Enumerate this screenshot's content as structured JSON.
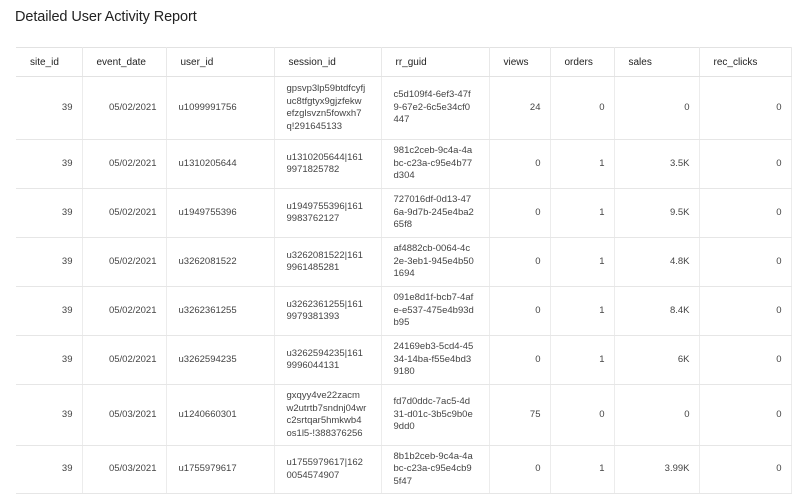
{
  "report": {
    "title": "Detailed User Activity Report"
  },
  "columns": [
    "site_id",
    "event_date",
    "user_id",
    "session_id",
    "rr_guid",
    "views",
    "orders",
    "sales",
    "rec_clicks"
  ],
  "rows": [
    {
      "site_id": "39",
      "event_date": "05/02/2021",
      "user_id": "u1099991756",
      "session_id": "gpsvp3lp59btdfcyfjuc8tfgtyx9gjzfekwefzglsvzn5fowxh7q!291645133",
      "rr_guid": "c5d109f4-6ef3-47f9-67e2-6c5e34cf0447",
      "views": "24",
      "orders": "0",
      "sales": "0",
      "rec_clicks": "0"
    },
    {
      "site_id": "39",
      "event_date": "05/02/2021",
      "user_id": "u1310205644",
      "session_id": "u1310205644|1619971825782",
      "rr_guid": "981c2ceb-9c4a-4abc-c23a-c95e4b77d304",
      "views": "0",
      "orders": "1",
      "sales": "3.5K",
      "rec_clicks": "0"
    },
    {
      "site_id": "39",
      "event_date": "05/02/2021",
      "user_id": "u1949755396",
      "session_id": "u1949755396|1619983762127",
      "rr_guid": "727016df-0d13-476a-9d7b-245e4ba265f8",
      "views": "0",
      "orders": "1",
      "sales": "9.5K",
      "rec_clicks": "0"
    },
    {
      "site_id": "39",
      "event_date": "05/02/2021",
      "user_id": "u3262081522",
      "session_id": "u3262081522|1619961485281",
      "rr_guid": "af4882cb-0064-4c2e-3eb1-945e4b501694",
      "views": "0",
      "orders": "1",
      "sales": "4.8K",
      "rec_clicks": "0"
    },
    {
      "site_id": "39",
      "event_date": "05/02/2021",
      "user_id": "u3262361255",
      "session_id": "u3262361255|1619979381393",
      "rr_guid": "091e8d1f-bcb7-4afe-e537-475e4b93db95",
      "views": "0",
      "orders": "1",
      "sales": "8.4K",
      "rec_clicks": "0"
    },
    {
      "site_id": "39",
      "event_date": "05/02/2021",
      "user_id": "u3262594235",
      "session_id": "u3262594235|1619996044131",
      "rr_guid": "24169eb3-5cd4-4534-14ba-f55e4bd39180",
      "views": "0",
      "orders": "1",
      "sales": "6K",
      "rec_clicks": "0"
    },
    {
      "site_id": "39",
      "event_date": "05/03/2021",
      "user_id": "u1240660301",
      "session_id": "gxqyy4ve22zacmw2utrtb7sndnj04wrc2srtqar5hmkwb4os1l5-!388376256",
      "rr_guid": "fd7d0ddc-7ac5-4d31-d01c-3b5c9b0e9dd0",
      "views": "75",
      "orders": "0",
      "sales": "0",
      "rec_clicks": "0"
    },
    {
      "site_id": "39",
      "event_date": "05/03/2021",
      "user_id": "u1755979617",
      "session_id": "u1755979617|1620054574907",
      "rr_guid": "8b1b2ceb-9c4a-4abc-c23a-c95e4cb95f47",
      "views": "0",
      "orders": "1",
      "sales": "3.99K",
      "rec_clicks": "0"
    }
  ]
}
